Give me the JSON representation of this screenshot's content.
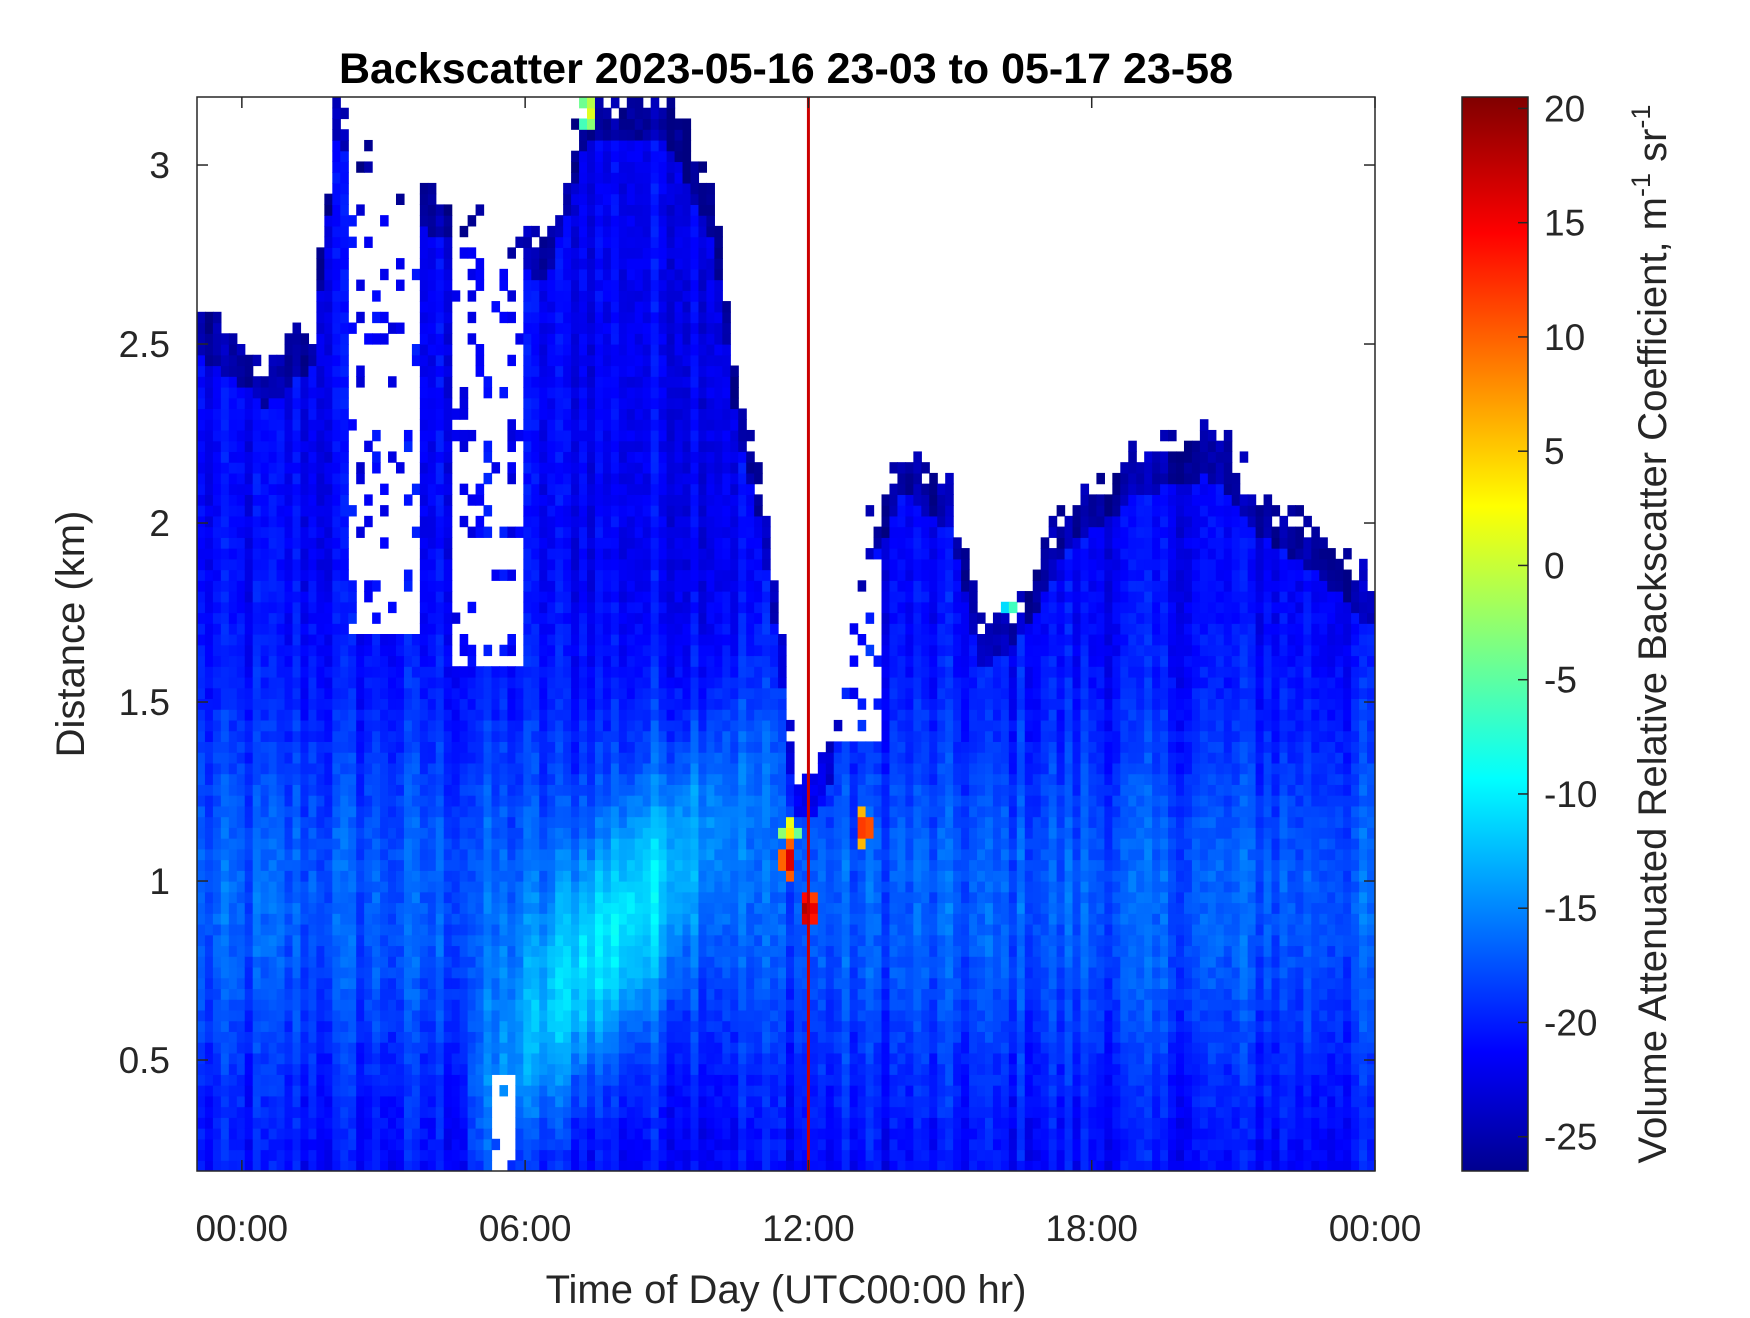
{
  "chart_data": {
    "type": "heatmap",
    "title": "Backscatter 2023-05-16 23-03 to 05-17 23-58",
    "xlabel": "Time of Day (UTC00:00 hr)",
    "ylabel": "Distance (km)",
    "colorbar_label": "Volume Attenuated Relative Backscatter Coefficient, m",
    "colorbar_unit_parts": [
      "-1",
      " sr",
      "-1"
    ],
    "x_ticks": [
      "00:00",
      "06:00",
      "12:00",
      "18:00",
      "00:00"
    ],
    "x_tick_hours": [
      0,
      6,
      12,
      18,
      24
    ],
    "xlim_hours": [
      -0.95,
      24.0
    ],
    "y_ticks": [
      "0.5",
      "1",
      "1.5",
      "2",
      "2.5",
      "3"
    ],
    "y_tick_values": [
      0.5,
      1,
      1.5,
      2,
      2.5,
      3
    ],
    "ylim_km": [
      0.19,
      3.19
    ],
    "colorbar_ticks": [
      "20",
      "15",
      "10",
      "5",
      "0",
      "-5",
      "-10",
      "-15",
      "-20",
      "-25"
    ],
    "colorbar_tick_values": [
      20,
      15,
      10,
      5,
      0,
      -5,
      -10,
      -15,
      -20,
      -25
    ],
    "colorbar_lim": [
      -26.5,
      20.5
    ],
    "colormap": "jet",
    "marker_line": {
      "hour": 12.0,
      "color": "#cc0000"
    },
    "signal_top_km": {
      "hours": [
        -0.95,
        0.5,
        1.5,
        2.0,
        3.0,
        4.5,
        6.5,
        7.3,
        8.0,
        9.0,
        10.0,
        10.4,
        11.0,
        11.4,
        11.7,
        12.0,
        12.4,
        13.0,
        14.0,
        15.0,
        15.7,
        16.5,
        17.5,
        19.0,
        20.5,
        21.5,
        23.0,
        24.0
      ],
      "values": [
        2.6,
        2.45,
        2.55,
        3.19,
        3.0,
        2.9,
        2.8,
        3.19,
        3.19,
        3.19,
        2.9,
        2.45,
        2.1,
        1.7,
        1.3,
        1.3,
        1.35,
        1.9,
        2.2,
        2.1,
        1.7,
        1.8,
        2.05,
        2.2,
        2.25,
        2.1,
        1.95,
        1.82
      ]
    },
    "gaps": [
      {
        "hours": [
          2.2,
          3.8
        ],
        "from_km": 1.7,
        "to_km": 3.19
      },
      {
        "hours": [
          4.4,
          5.9
        ],
        "from_km": 1.6,
        "to_km": 3.19
      },
      {
        "hours": [
          5.3,
          5.85
        ],
        "from_km": 0.19,
        "to_km": 0.45
      },
      {
        "hours": [
          12.3,
          13.6
        ],
        "from_km": 1.4,
        "to_km": 1.9
      }
    ],
    "value_model": {
      "background_db": -21,
      "haze_db": -16.5,
      "plume_peak_db": -9.5,
      "plume_path_hours": [
        5.8,
        11.0
      ],
      "plume_path_km": [
        0.5,
        1.35
      ]
    },
    "hotspots": [
      {
        "hour": 11.6,
        "km": 1.06,
        "db": 17
      },
      {
        "hour": 11.6,
        "km": 1.14,
        "db": 4
      },
      {
        "hour": 12.0,
        "km": 0.92,
        "db": 19
      },
      {
        "hour": 13.2,
        "km": 1.15,
        "db": 14
      },
      {
        "hour": 7.35,
        "km": 3.15,
        "db": 2
      },
      {
        "hour": 16.3,
        "km": 1.78,
        "db": -5
      }
    ]
  }
}
